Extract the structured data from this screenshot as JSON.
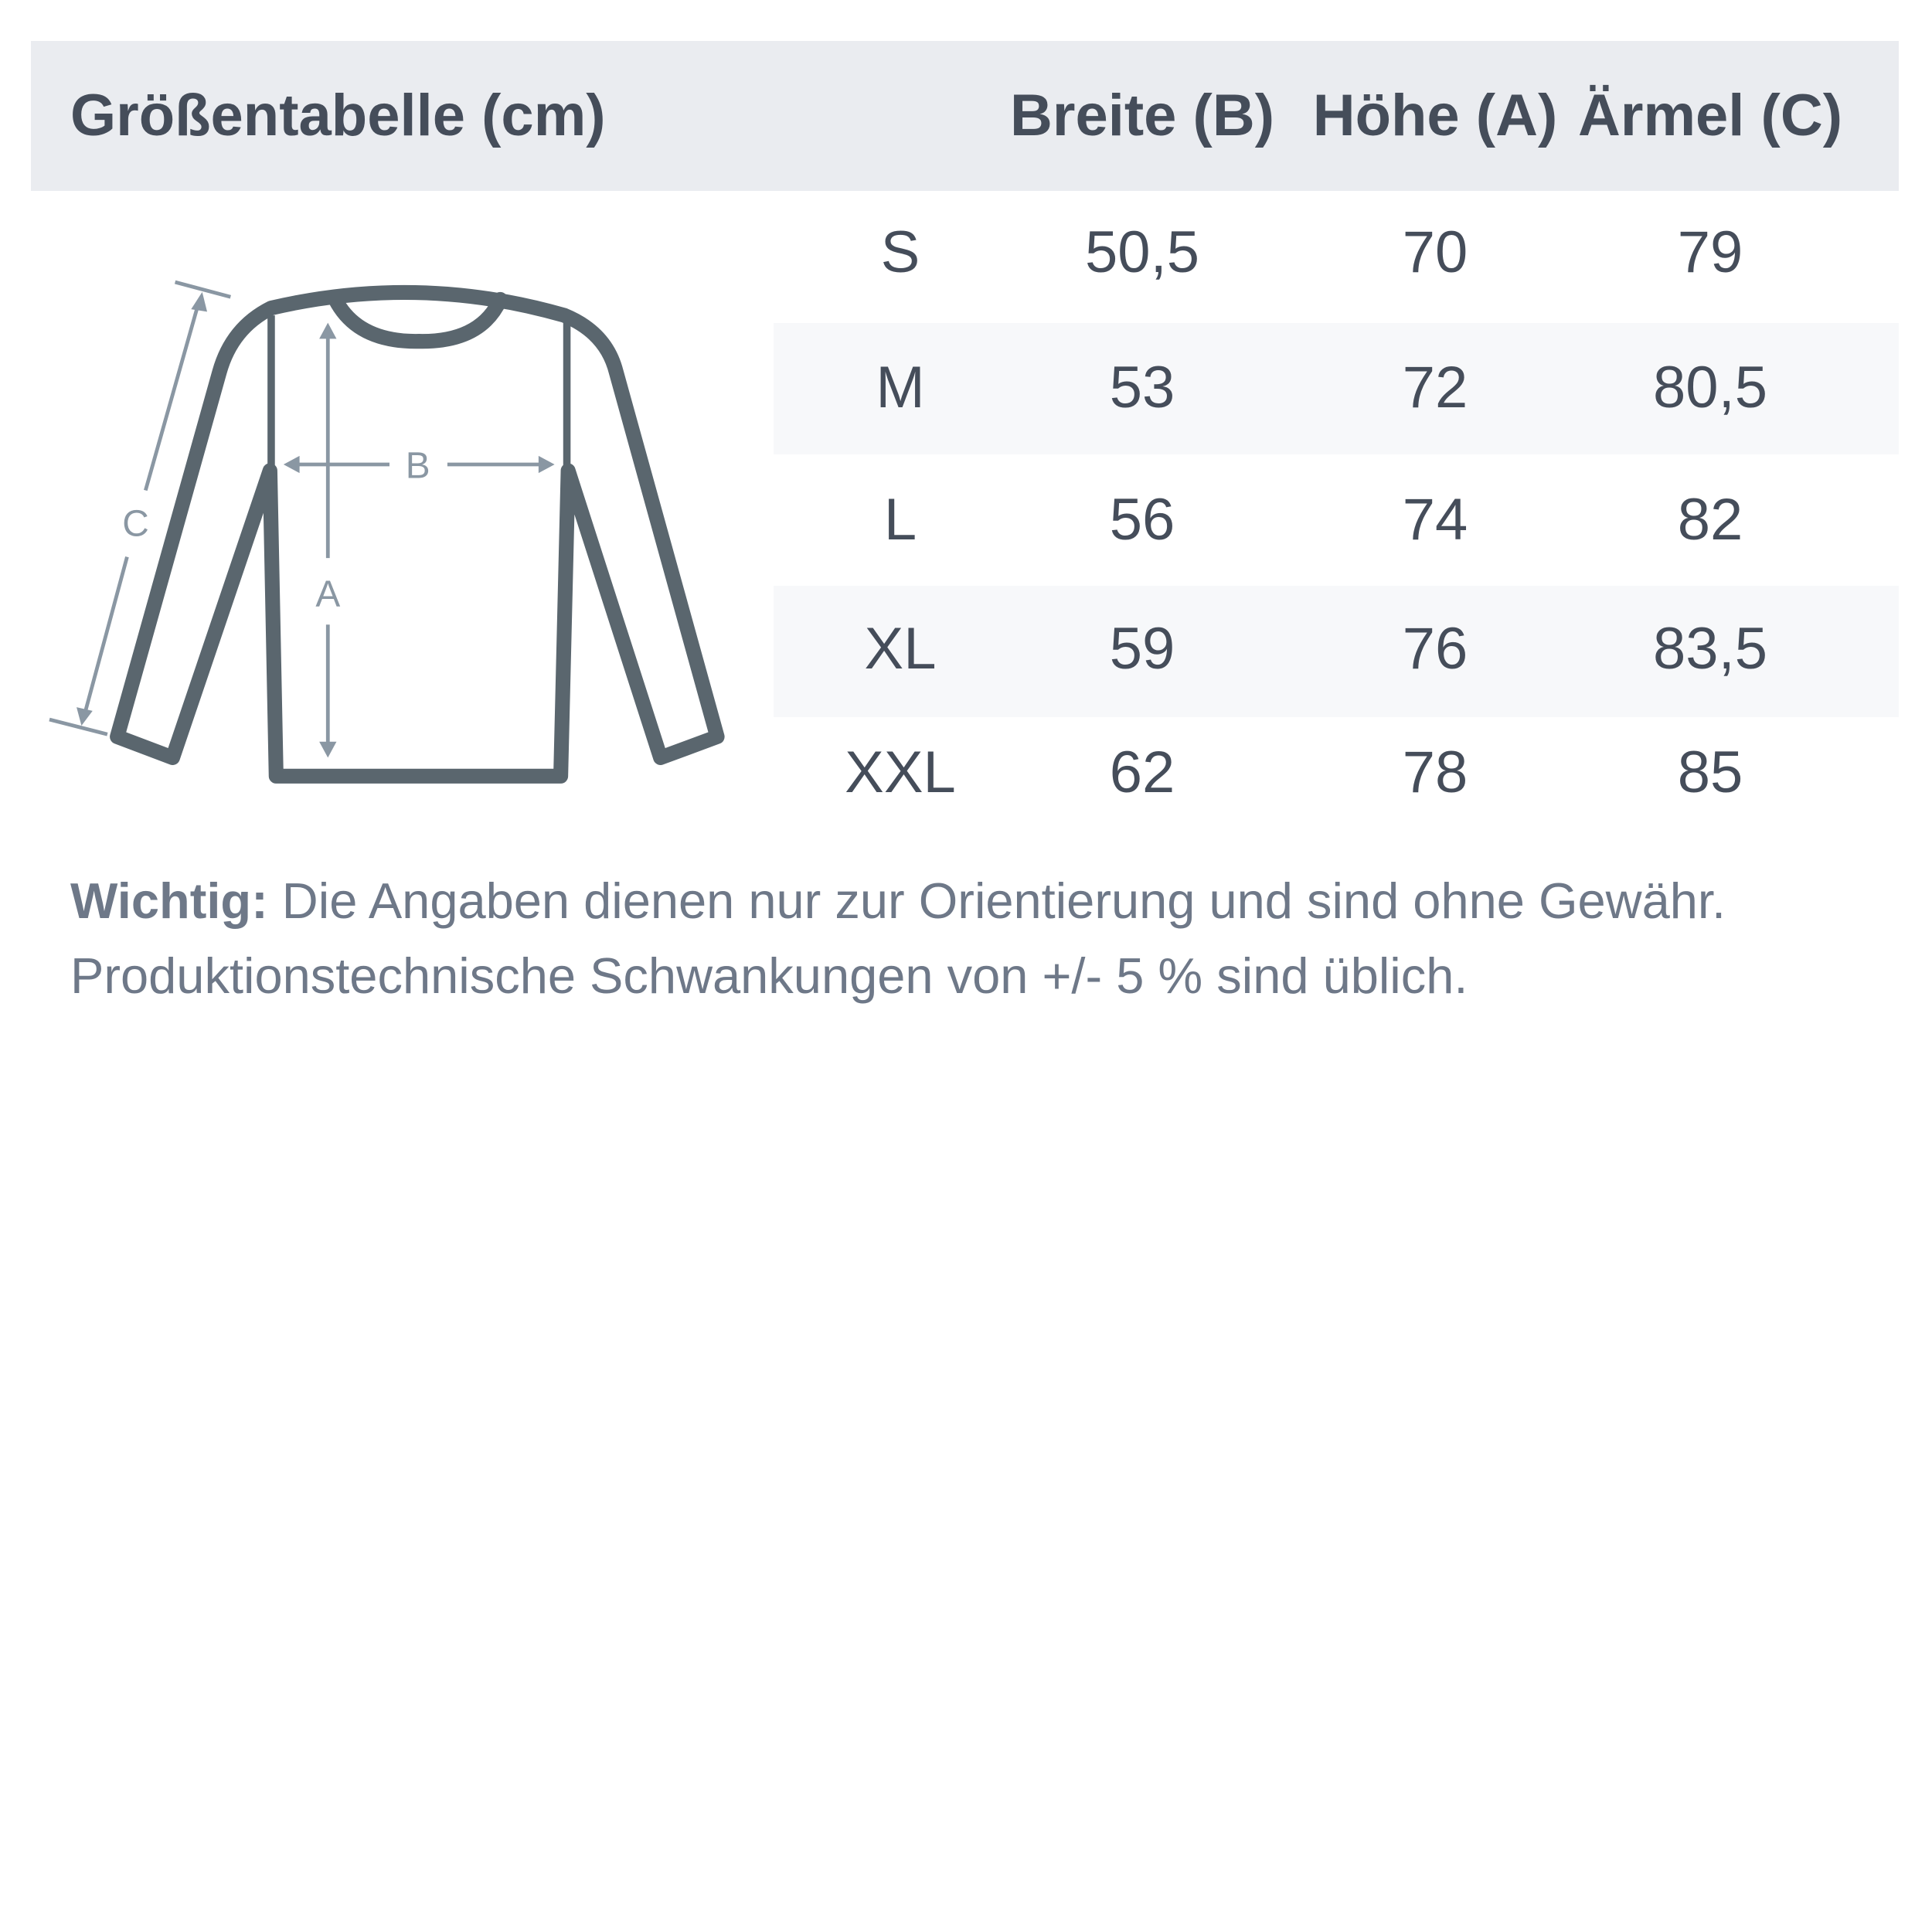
{
  "header": {
    "title": "Größentabelle (cm)",
    "columns": [
      "Breite (B)",
      "Höhe (A)",
      "Ärmel (C)"
    ]
  },
  "diagram": {
    "labels": {
      "width": "B",
      "height": "A",
      "sleeve": "C"
    },
    "icon": "long-sleeve-shirt-icon"
  },
  "rows": [
    {
      "size": "S",
      "breite": "50,5",
      "hoehe": "70",
      "aermel": "79"
    },
    {
      "size": "M",
      "breite": "53",
      "hoehe": "72",
      "aermel": "80,5"
    },
    {
      "size": "L",
      "breite": "56",
      "hoehe": "74",
      "aermel": "82"
    },
    {
      "size": "XL",
      "breite": "59",
      "hoehe": "76",
      "aermel": "83,5"
    },
    {
      "size": "XXL",
      "breite": "62",
      "hoehe": "78",
      "aermel": "85"
    }
  ],
  "note": {
    "label": "Wichtig:",
    "line1": " Die Angaben dienen nur zur Orientierung und sind ohne Gewähr.",
    "line2": "Produktionstechnische Schwankungen von +/- 5 % sind üblich."
  },
  "colors": {
    "header_bg": "#eaecf0",
    "text": "#454d5a",
    "shirt": "#5a666e",
    "measure": "#8a97a3",
    "note": "#6e7888"
  }
}
